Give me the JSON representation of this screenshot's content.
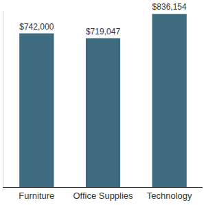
{
  "chart_data": {
    "type": "bar",
    "categories": [
      "Furniture",
      "Office Supplies",
      "Technology"
    ],
    "values": [
      742000,
      719047,
      836154
    ],
    "value_labels": [
      "$742,000",
      "$719,047",
      "$836,154"
    ],
    "data_labels": true,
    "color": "#3f6b80",
    "ylim": [
      0,
      850000
    ],
    "grid": false,
    "tick_labels": "x"
  }
}
